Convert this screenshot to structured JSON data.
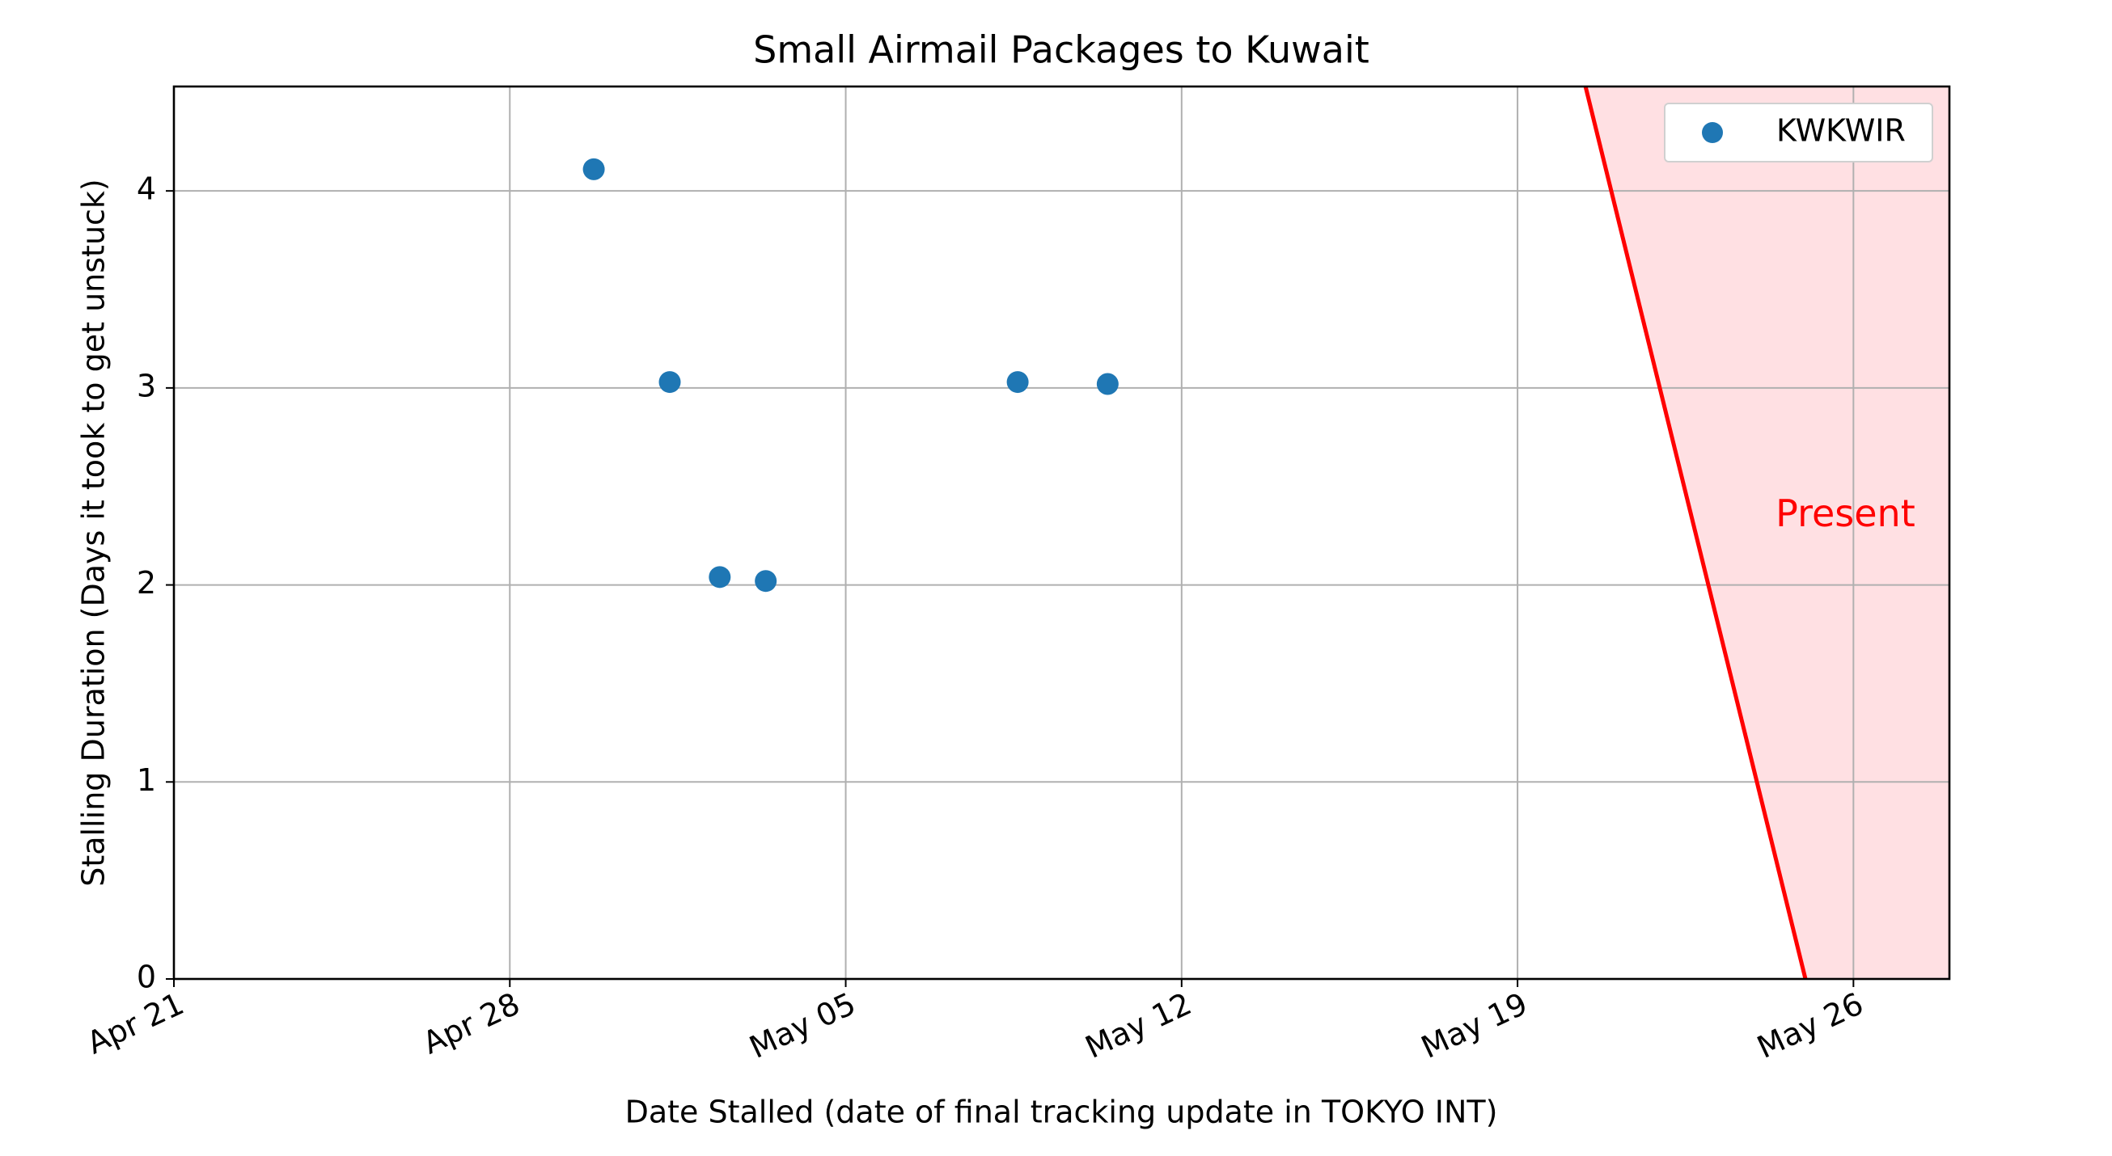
{
  "chart_data": {
    "type": "scatter",
    "title": "Small Airmail Packages to Kuwait",
    "xlabel": "Date Stalled (date of final tracking update in TOKYO INT)",
    "ylabel": "Stalling Duration (Days it took to get unstuck)",
    "x_ticks": [
      "Apr 21",
      "Apr 28",
      "May 05",
      "May 12",
      "May 19",
      "May 26"
    ],
    "x_tick_dates": [
      "2023-04-21",
      "2023-04-28",
      "2023-05-05",
      "2023-05-12",
      "2023-05-19",
      "2023-05-26"
    ],
    "y_ticks": [
      "0",
      "1",
      "2",
      "3",
      "4"
    ],
    "xlim": [
      "2023-04-21",
      "2023-05-28"
    ],
    "ylim": [
      0,
      4.53
    ],
    "grid": true,
    "legend_position": "upper right",
    "series": [
      {
        "name": "KWKWIR",
        "color": "#1f77b4",
        "points": [
          {
            "x": "2023-04-29T18:00",
            "y": 4.11
          },
          {
            "x": "2023-05-01T08:00",
            "y": 3.03
          },
          {
            "x": "2023-05-02T09:00",
            "y": 2.04
          },
          {
            "x": "2023-05-03T08:00",
            "y": 2.02
          },
          {
            "x": "2023-05-08T14:00",
            "y": 3.03
          },
          {
            "x": "2023-05-10T11:00",
            "y": 3.02
          }
        ]
      }
    ],
    "present_marker": {
      "label": "Present",
      "color": "#ff0000",
      "fill": "#ffe0e3",
      "line_start": {
        "x": "2023-05-20T10:00",
        "y": 4.53
      },
      "line_end": {
        "x": "2023-05-25T00:00",
        "y": 0
      },
      "label_position": {
        "x": "2023-05-25T20:00",
        "y": 2.35
      }
    }
  }
}
